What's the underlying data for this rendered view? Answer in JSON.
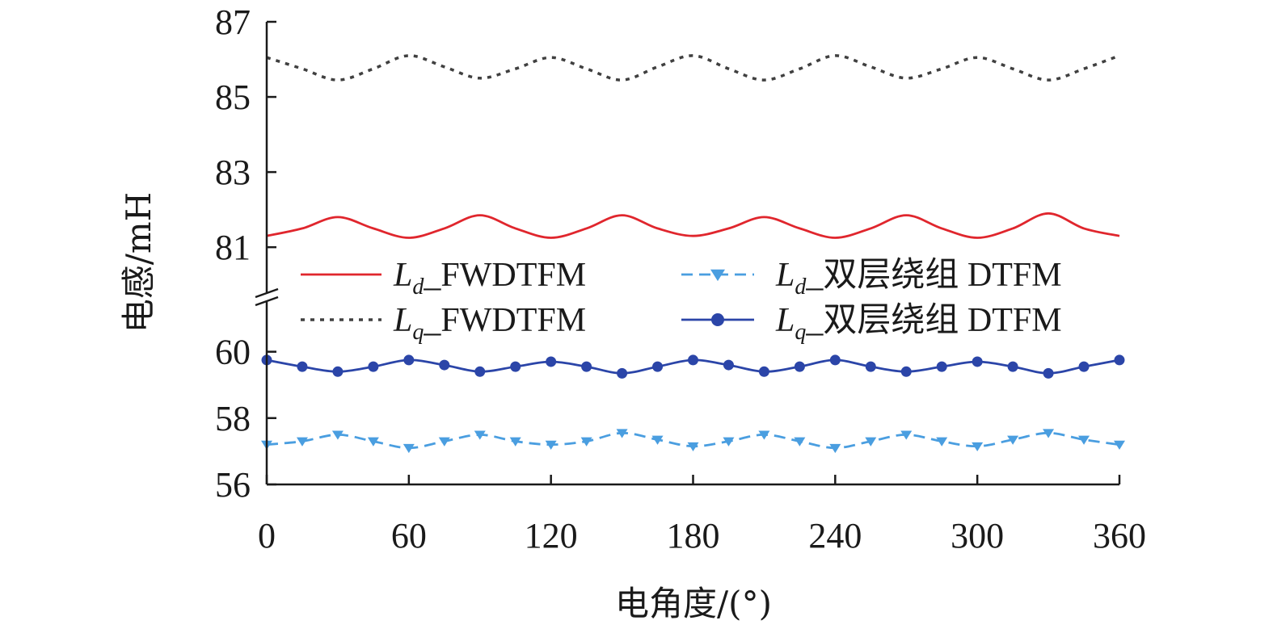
{
  "chart_data": {
    "type": "line",
    "xlabel": "电角度/(°)",
    "ylabel": "电感/mH",
    "xlim": [
      0,
      360
    ],
    "x_ticks": [
      "0",
      "60",
      "120",
      "180",
      "240",
      "300",
      "360"
    ],
    "y_break": true,
    "upper_ylim": [
      79.8,
      87
    ],
    "upper_y_ticks": [
      "81",
      "83",
      "85",
      "87"
    ],
    "lower_ylim": [
      56,
      61.5
    ],
    "lower_y_ticks": [
      "56",
      "58",
      "60"
    ],
    "legend_position": "center",
    "x": [
      0,
      15,
      30,
      45,
      60,
      75,
      90,
      105,
      120,
      135,
      150,
      165,
      180,
      195,
      210,
      225,
      240,
      255,
      270,
      285,
      300,
      315,
      330,
      345,
      360
    ],
    "series": [
      {
        "name_symbol": "L",
        "name_sub": "d",
        "name_rest": "_FWDTFM",
        "color": "#e0262d",
        "style": "solid",
        "marker": "none",
        "axis": "upper",
        "values": [
          81.3,
          81.5,
          81.8,
          81.5,
          81.25,
          81.5,
          81.85,
          81.5,
          81.25,
          81.5,
          81.85,
          81.5,
          81.3,
          81.5,
          81.8,
          81.5,
          81.25,
          81.5,
          81.85,
          81.5,
          81.25,
          81.5,
          81.9,
          81.5,
          81.3
        ]
      },
      {
        "name_symbol": "L",
        "name_sub": "q",
        "name_rest": "_FWDTFM",
        "color": "#404040",
        "style": "dotted",
        "marker": "none",
        "axis": "upper",
        "values": [
          86.05,
          85.75,
          85.45,
          85.75,
          86.1,
          85.8,
          85.5,
          85.75,
          86.05,
          85.75,
          85.45,
          85.8,
          86.1,
          85.75,
          85.45,
          85.75,
          86.1,
          85.8,
          85.5,
          85.75,
          86.05,
          85.75,
          85.45,
          85.75,
          86.1
        ]
      },
      {
        "name_symbol": "L",
        "name_sub": "d",
        "name_rest": "_双层绕组 DTFM",
        "color": "#4a9ee0",
        "style": "dashed",
        "marker": "triangle-down",
        "axis": "lower",
        "values": [
          57.2,
          57.3,
          57.5,
          57.3,
          57.1,
          57.3,
          57.5,
          57.3,
          57.2,
          57.3,
          57.55,
          57.35,
          57.15,
          57.3,
          57.5,
          57.3,
          57.1,
          57.3,
          57.5,
          57.3,
          57.15,
          57.35,
          57.55,
          57.35,
          57.2
        ]
      },
      {
        "name_symbol": "L",
        "name_sub": "q",
        "name_rest": "_双层绕组 DTFM",
        "color": "#2b45a8",
        "style": "solid",
        "marker": "circle",
        "axis": "lower",
        "values": [
          59.75,
          59.55,
          59.4,
          59.55,
          59.75,
          59.6,
          59.4,
          59.55,
          59.7,
          59.55,
          59.35,
          59.55,
          59.75,
          59.6,
          59.4,
          59.55,
          59.75,
          59.55,
          59.4,
          59.55,
          59.7,
          59.55,
          59.35,
          59.55,
          59.75
        ]
      }
    ]
  }
}
